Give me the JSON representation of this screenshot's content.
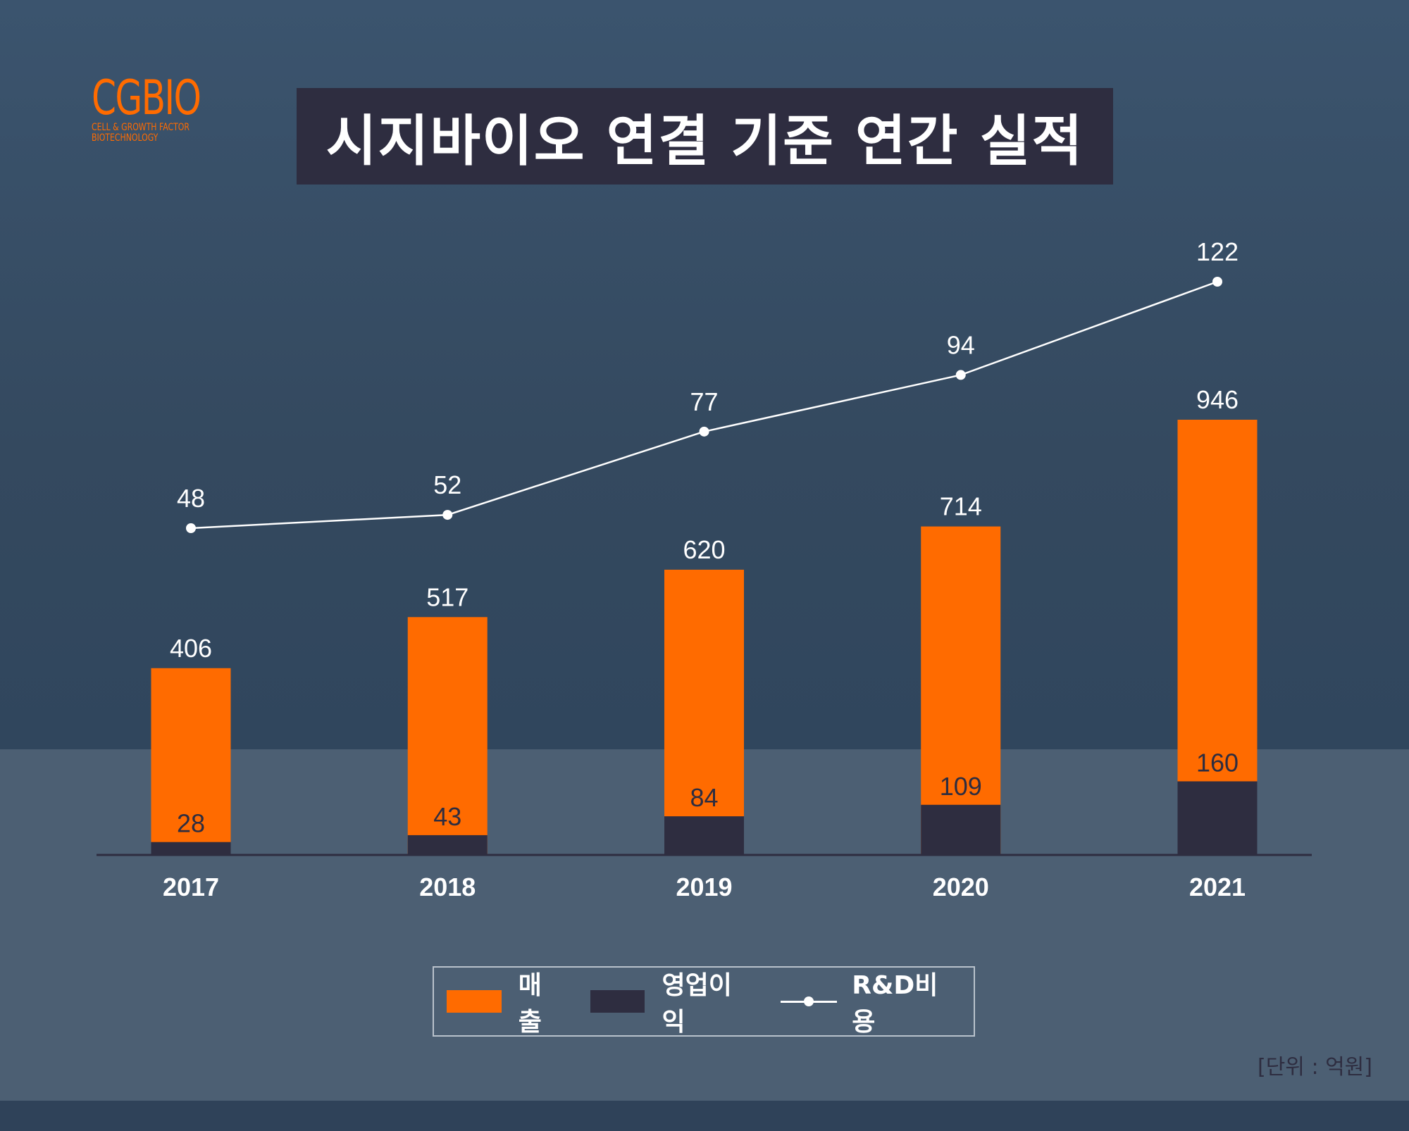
{
  "logo": {
    "main": "CGBIO",
    "sub_line1": "CELL & GROWTH FACTOR",
    "sub_line2": "BIOTECHNOLOGY",
    "color": "#ff6b00"
  },
  "title": "시지바이오 연결 기준 연간 실적",
  "unit_note": "[단위 : 억원]",
  "legend": [
    {
      "label": "매출",
      "type": "bar",
      "color": "#ff6b00"
    },
    {
      "label": "영업이익",
      "type": "bar",
      "color": "#2e2d40"
    },
    {
      "label": "R&D비용",
      "type": "line",
      "color": "#ffffff"
    }
  ],
  "chart_data": {
    "type": "bar",
    "title": "시지바이오 연결 기준 연간 실적",
    "xlabel": "",
    "ylabel": "",
    "unit": "억원",
    "categories": [
      "2017",
      "2018",
      "2019",
      "2020",
      "2021"
    ],
    "series": [
      {
        "name": "매출",
        "type": "bar",
        "color": "#ff6b00",
        "values": [
          406,
          517,
          620,
          714,
          946
        ]
      },
      {
        "name": "영업이익",
        "type": "bar",
        "color": "#2e2d40",
        "values": [
          28,
          43,
          84,
          109,
          160
        ]
      },
      {
        "name": "R&D비용",
        "type": "line",
        "color": "#ffffff",
        "values": [
          48,
          52,
          77,
          94,
          122
        ]
      }
    ],
    "bar_mode": "overlay",
    "grid": false,
    "legend_position": "bottom-center"
  }
}
